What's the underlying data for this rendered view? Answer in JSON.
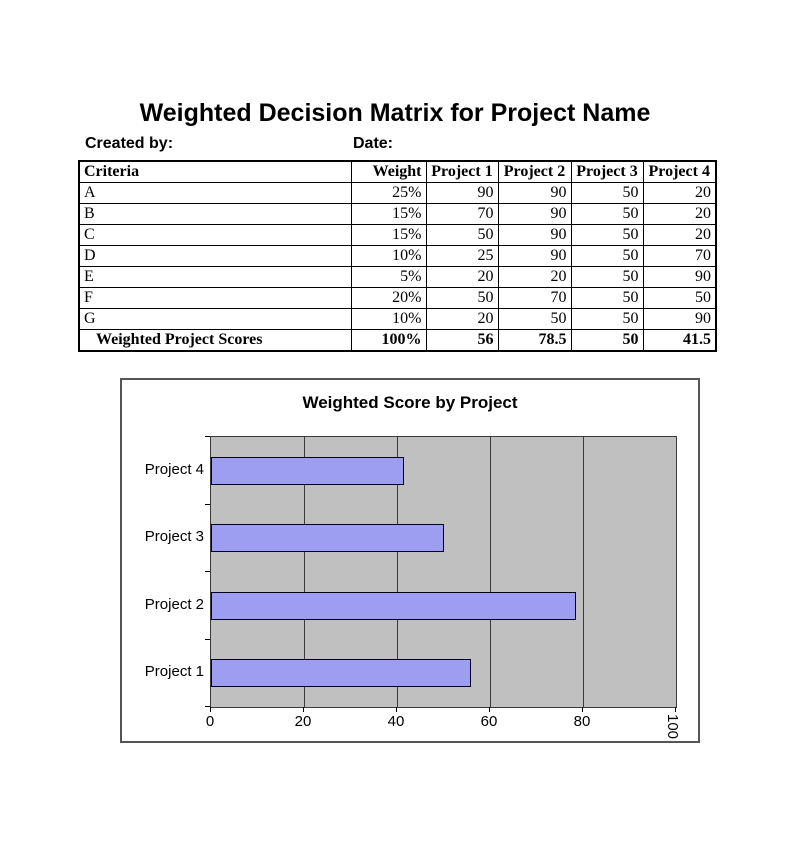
{
  "page": {
    "title": "Weighted Decision Matrix for Project Name",
    "created_by_label": "Created by:",
    "date_label": "Date:"
  },
  "table": {
    "headers": [
      "Criteria",
      "Weight",
      "Project 1",
      "Project 2",
      "Project 3",
      "Project 4"
    ],
    "rows": [
      {
        "criteria": "A",
        "weight": "25%",
        "scores": [
          "90",
          "90",
          "50",
          "20"
        ]
      },
      {
        "criteria": "B",
        "weight": "15%",
        "scores": [
          "70",
          "90",
          "50",
          "20"
        ]
      },
      {
        "criteria": "C",
        "weight": "15%",
        "scores": [
          "50",
          "90",
          "50",
          "20"
        ]
      },
      {
        "criteria": "D",
        "weight": "10%",
        "scores": [
          "25",
          "90",
          "50",
          "70"
        ]
      },
      {
        "criteria": "E",
        "weight": "5%",
        "scores": [
          "20",
          "20",
          "50",
          "90"
        ]
      },
      {
        "criteria": "F",
        "weight": "20%",
        "scores": [
          "50",
          "70",
          "50",
          "50"
        ]
      },
      {
        "criteria": "G",
        "weight": "10%",
        "scores": [
          "20",
          "50",
          "50",
          "90"
        ]
      }
    ],
    "total_row": {
      "label": "Weighted Project Scores",
      "weight": "100%",
      "scores": [
        "56",
        "78.5",
        "50",
        "41.5"
      ]
    }
  },
  "chart_data": {
    "type": "bar",
    "orientation": "horizontal",
    "title": "Weighted Score by Project",
    "categories": [
      "Project 4",
      "Project 3",
      "Project 2",
      "Project 1"
    ],
    "values": [
      41.5,
      50,
      78.5,
      56
    ],
    "xlim": [
      0,
      100
    ],
    "xticks": [
      0,
      20,
      40,
      60,
      80,
      100
    ],
    "grid": true,
    "legend": false,
    "last_tick_rotated": true,
    "colors": {
      "plot_background": "#c0c0c0",
      "bar_fill": "#9d9df2",
      "bar_border": "#000020",
      "gridline": "#3a3a3a",
      "chart_border": "#555555"
    }
  }
}
